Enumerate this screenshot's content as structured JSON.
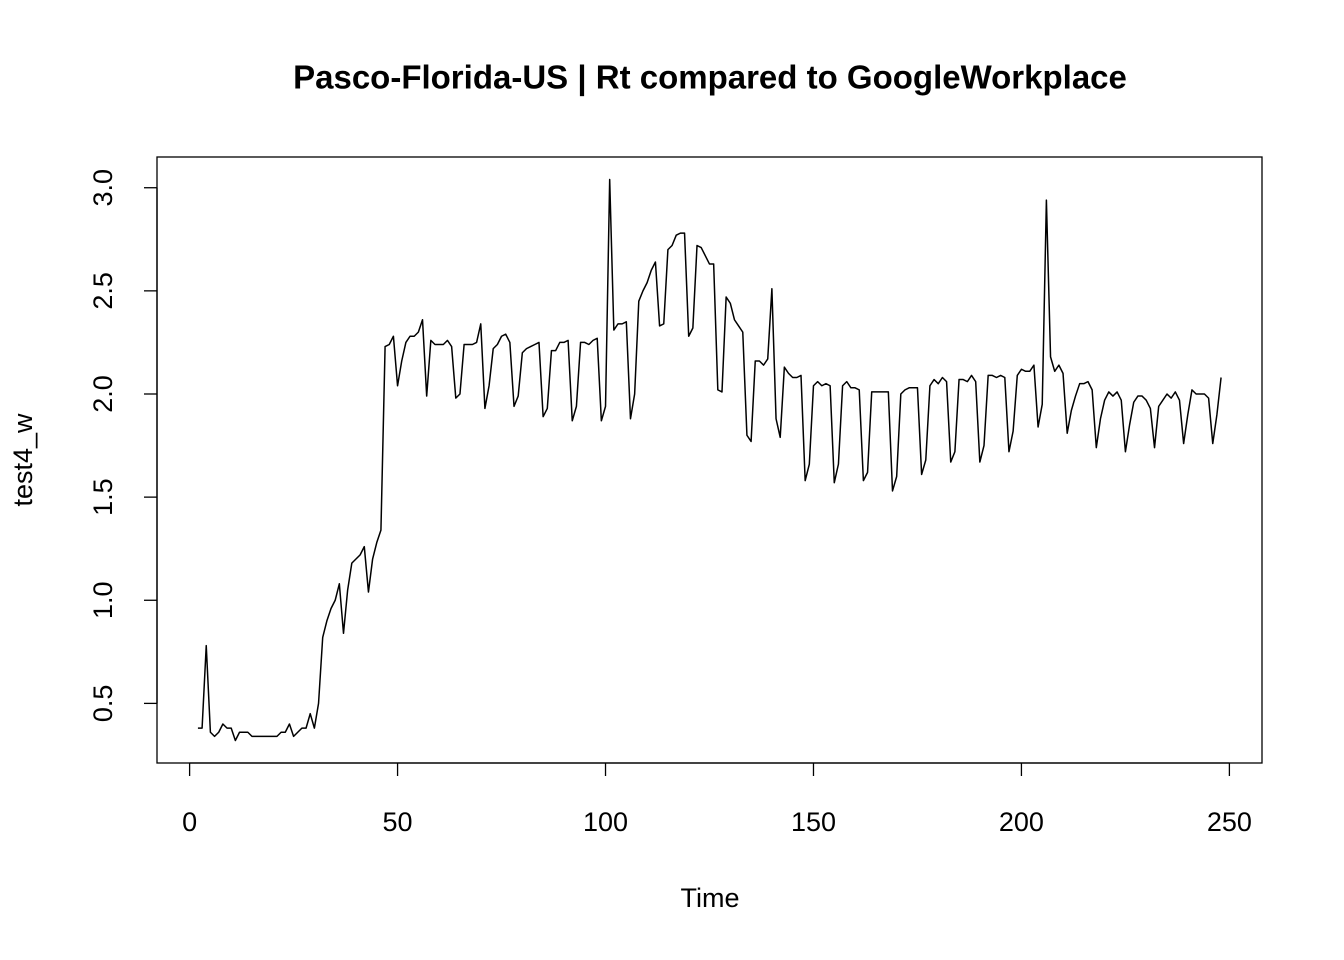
{
  "chart_data": {
    "type": "line",
    "title": "Pasco-Florida-US | Rt compared to GoogleWorkplace",
    "xlabel": "Time",
    "ylabel": "test4_w",
    "color": "#000000",
    "xlim": [
      -7.84,
      257.84
    ],
    "ylim": [
      0.211,
      3.149
    ],
    "xticks": [
      0,
      50,
      100,
      150,
      200,
      250
    ],
    "yticks": [
      0.5,
      {
        "value": 1,
        "label": "1.0"
      },
      1.5,
      {
        "value": 2,
        "label": "2.0"
      },
      2.5,
      {
        "value": 3,
        "label": "3.0"
      }
    ],
    "x": [
      2,
      3,
      4,
      5,
      6,
      7,
      8,
      9,
      10,
      11,
      12,
      13,
      14,
      15,
      16,
      17,
      18,
      19,
      20,
      21,
      22,
      23,
      24,
      25,
      26,
      27,
      28,
      29,
      30,
      31,
      32,
      33,
      34,
      35,
      36,
      37,
      38,
      39,
      40,
      41,
      42,
      43,
      44,
      45,
      46,
      47,
      48,
      49,
      50,
      51,
      52,
      53,
      54,
      55,
      56,
      57,
      58,
      59,
      60,
      61,
      62,
      63,
      64,
      65,
      66,
      67,
      68,
      69,
      70,
      71,
      72,
      73,
      74,
      75,
      76,
      77,
      78,
      79,
      80,
      81,
      82,
      83,
      84,
      85,
      86,
      87,
      88,
      89,
      90,
      91,
      92,
      93,
      94,
      95,
      96,
      97,
      98,
      99,
      100,
      101,
      102,
      103,
      104,
      105,
      106,
      107,
      108,
      109,
      110,
      111,
      112,
      113,
      114,
      115,
      116,
      117,
      118,
      119,
      120,
      121,
      122,
      123,
      124,
      125,
      126,
      127,
      128,
      129,
      130,
      131,
      132,
      133,
      134,
      135,
      136,
      137,
      138,
      139,
      140,
      141,
      142,
      143,
      144,
      145,
      146,
      147,
      148,
      149,
      150,
      151,
      152,
      153,
      154,
      155,
      156,
      157,
      158,
      159,
      160,
      161,
      162,
      163,
      164,
      165,
      166,
      167,
      168,
      169,
      170,
      171,
      172,
      173,
      174,
      175,
      176,
      177,
      178,
      179,
      180,
      181,
      182,
      183,
      184,
      185,
      186,
      187,
      188,
      189,
      190,
      191,
      192,
      193,
      194,
      195,
      196,
      197,
      198,
      199,
      200,
      201,
      202,
      203,
      204,
      205,
      206,
      207,
      208,
      209,
      210,
      211,
      212,
      213,
      214,
      215,
      216,
      217,
      218,
      219,
      220,
      221,
      222,
      223,
      224,
      225,
      226,
      227,
      228,
      229,
      230,
      231,
      232,
      233,
      234,
      235,
      236,
      237,
      238,
      239,
      240,
      241,
      242,
      243,
      244,
      245,
      246,
      247,
      248
    ],
    "values": [
      0.38,
      0.38,
      0.78,
      0.36,
      0.34,
      0.36,
      0.4,
      0.38,
      0.38,
      0.32,
      0.36,
      0.36,
      0.36,
      0.34,
      0.34,
      0.34,
      0.34,
      0.34,
      0.34,
      0.34,
      0.36,
      0.36,
      0.4,
      0.34,
      0.36,
      0.38,
      0.38,
      0.45,
      0.38,
      0.5,
      0.82,
      0.9,
      0.96,
      1.0,
      1.08,
      0.84,
      1.05,
      1.18,
      1.2,
      1.22,
      1.26,
      1.04,
      1.2,
      1.28,
      1.34,
      2.23,
      2.24,
      2.28,
      2.04,
      2.16,
      2.25,
      2.28,
      2.28,
      2.3,
      2.36,
      1.99,
      2.26,
      2.24,
      2.24,
      2.24,
      2.26,
      2.23,
      1.98,
      2.0,
      2.24,
      2.24,
      2.24,
      2.25,
      2.34,
      1.93,
      2.04,
      2.22,
      2.24,
      2.28,
      2.29,
      2.25,
      1.94,
      1.99,
      2.2,
      2.22,
      2.23,
      2.24,
      2.25,
      1.89,
      1.93,
      2.21,
      2.21,
      2.25,
      2.25,
      2.26,
      1.87,
      1.94,
      2.25,
      2.25,
      2.24,
      2.26,
      2.27,
      1.87,
      1.94,
      3.04,
      2.31,
      2.34,
      2.34,
      2.35,
      1.88,
      2.0,
      2.45,
      2.5,
      2.54,
      2.6,
      2.64,
      2.33,
      2.34,
      2.7,
      2.72,
      2.77,
      2.78,
      2.78,
      2.28,
      2.32,
      2.72,
      2.71,
      2.67,
      2.63,
      2.63,
      2.02,
      2.01,
      2.47,
      2.44,
      2.36,
      2.33,
      2.3,
      1.8,
      1.77,
      2.16,
      2.16,
      2.14,
      2.17,
      2.51,
      1.88,
      1.79,
      2.13,
      2.1,
      2.08,
      2.08,
      2.09,
      1.58,
      1.66,
      2.04,
      2.06,
      2.04,
      2.05,
      2.04,
      1.57,
      1.66,
      2.04,
      2.06,
      2.03,
      2.03,
      2.02,
      1.58,
      1.62,
      2.01,
      2.01,
      2.01,
      2.01,
      2.01,
      1.53,
      1.6,
      2.0,
      2.02,
      2.03,
      2.03,
      2.03,
      1.61,
      1.68,
      2.04,
      2.07,
      2.05,
      2.08,
      2.06,
      1.67,
      1.72,
      2.07,
      2.07,
      2.06,
      2.09,
      2.06,
      1.67,
      1.75,
      2.09,
      2.09,
      2.08,
      2.09,
      2.08,
      1.72,
      1.82,
      2.09,
      2.12,
      2.11,
      2.11,
      2.14,
      1.84,
      1.95,
      2.94,
      2.18,
      2.11,
      2.14,
      2.1,
      1.81,
      1.92,
      1.99,
      2.05,
      2.05,
      2.06,
      2.02,
      1.74,
      1.88,
      1.97,
      2.01,
      1.99,
      2.01,
      1.97,
      1.72,
      1.85,
      1.96,
      1.99,
      1.99,
      1.97,
      1.93,
      1.74,
      1.94,
      1.97,
      2.0,
      1.98,
      2.01,
      1.97,
      1.76,
      1.9,
      2.02,
      2.0,
      2.0,
      2.0,
      1.98,
      1.76,
      1.9,
      2.08
    ]
  }
}
